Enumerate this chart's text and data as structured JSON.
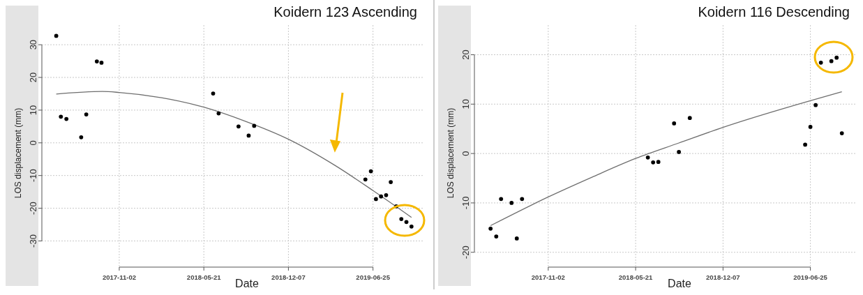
{
  "chart_data": [
    {
      "type": "scatter",
      "title": "Koidern 123 Ascending",
      "xlabel": "Date",
      "ylabel": "LOS displacement (mm)",
      "xlim": [
        "2017-05-03",
        "2019-10-24"
      ],
      "ylim": [
        -38,
        36
      ],
      "xticks": [
        "2017-11-02",
        "2018-05-21",
        "2018-12-07",
        "2019-06-25"
      ],
      "yticks": [
        -30,
        -20,
        -10,
        0,
        10,
        20,
        30
      ],
      "grid": true,
      "marker": "circle",
      "legend": false,
      "series": [
        {
          "type": "scatter",
          "color": "#000000",
          "x": [
            "2017-06-06",
            "2017-06-17",
            "2017-06-30",
            "2017-08-04",
            "2017-08-16",
            "2017-09-10",
            "2017-09-21",
            "2018-06-12",
            "2018-06-25",
            "2018-08-11",
            "2018-09-04",
            "2018-09-17",
            "2019-06-07",
            "2019-06-20",
            "2019-07-02",
            "2019-07-14",
            "2019-07-26",
            "2019-08-06",
            "2019-08-19",
            "2019-08-31",
            "2019-09-12",
            "2019-09-24"
          ],
          "values": [
            32.7,
            8.0,
            7.3,
            1.7,
            8.7,
            24.9,
            24.5,
            15.1,
            9.0,
            5.0,
            2.2,
            5.2,
            -11.2,
            -8.7,
            -17.2,
            -16.4,
            -16.0,
            -12.0,
            -19.4,
            -23.3,
            -24.2,
            -25.6
          ]
        },
        {
          "type": "line",
          "color": "#6e6e6e",
          "marker": "none",
          "x": [
            "2017-06-06",
            "2017-09-23",
            "2017-11-02",
            "2018-02-10",
            "2018-05-21",
            "2018-08-27",
            "2018-12-07",
            "2019-03-27",
            "2019-06-25",
            "2019-09-24"
          ],
          "values": [
            14.9,
            15.7,
            15.4,
            13.8,
            10.9,
            6.6,
            1.1,
            -6.9,
            -14.6,
            -22.8
          ]
        }
      ]
    },
    {
      "type": "scatter",
      "title": "Koidern 116 Descending",
      "xlabel": "Date",
      "ylabel": "LOS displacement (mm)",
      "xlim": [
        "2017-05-17",
        "2019-10-09"
      ],
      "ylim": [
        -23,
        26
      ],
      "xticks": [
        "2017-11-02",
        "2018-05-21",
        "2018-12-07",
        "2019-06-25"
      ],
      "yticks": [
        -20,
        -10,
        0,
        10,
        20
      ],
      "grid": true,
      "marker": "circle",
      "legend": false,
      "series": [
        {
          "type": "scatter",
          "color": "#000000",
          "x": [
            "2017-06-23",
            "2017-07-06",
            "2017-07-17",
            "2017-08-10",
            "2017-08-22",
            "2017-09-03",
            "2018-06-18",
            "2018-06-30",
            "2018-07-12",
            "2018-08-17",
            "2018-08-28",
            "2018-09-22",
            "2019-06-13",
            "2019-06-25",
            "2019-07-07",
            "2019-07-19",
            "2019-08-12",
            "2019-08-24",
            "2019-09-05"
          ],
          "values": [
            -15.2,
            -16.8,
            -9.2,
            -10.0,
            -17.2,
            -9.2,
            -0.8,
            -1.8,
            -1.7,
            6.1,
            0.3,
            7.2,
            1.8,
            5.4,
            9.8,
            18.4,
            18.7,
            19.4,
            4.1
          ]
        },
        {
          "type": "line",
          "color": "#6e6e6e",
          "marker": "none",
          "x": [
            "2017-06-23",
            "2017-11-02",
            "2018-02-10",
            "2018-05-21",
            "2018-08-27",
            "2018-12-07",
            "2019-06-25",
            "2019-09-05"
          ],
          "values": [
            -14.6,
            -8.8,
            -4.8,
            -1.0,
            2.1,
            5.3,
            10.7,
            12.5
          ]
        }
      ]
    }
  ]
}
